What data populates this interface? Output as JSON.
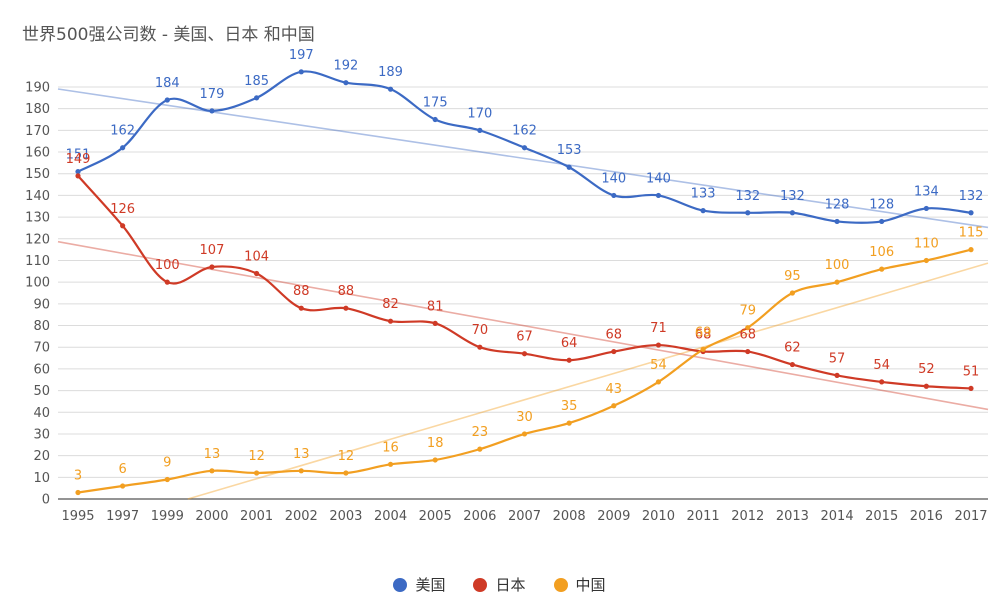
{
  "chart_data": {
    "type": "line",
    "title": "世界500强公司数 - 美国、日本 和中国",
    "xlabel": "",
    "ylabel": "",
    "x": [
      "1995",
      "1997",
      "1999",
      "2000",
      "2001",
      "2002",
      "2003",
      "2004",
      "2005",
      "2006",
      "2007",
      "2008",
      "2009",
      "2010",
      "2011",
      "2012",
      "2013",
      "2014",
      "2015",
      "2016",
      "2017"
    ],
    "ylim": [
      0,
      190
    ],
    "yticks": [
      0,
      10,
      20,
      30,
      40,
      50,
      60,
      70,
      80,
      90,
      100,
      110,
      120,
      130,
      140,
      150,
      160,
      170,
      180,
      190
    ],
    "grid": true,
    "legend_position": "bottom",
    "trendlines": true,
    "series": [
      {
        "name": "美国",
        "color": "#3c6ac4",
        "values": [
          151,
          162,
          184,
          179,
          185,
          197,
          192,
          189,
          175,
          170,
          162,
          153,
          140,
          140,
          133,
          132,
          132,
          128,
          128,
          134,
          132
        ]
      },
      {
        "name": "日本",
        "color": "#cf3a26",
        "values": [
          149,
          126,
          100,
          107,
          104,
          88,
          88,
          82,
          81,
          70,
          67,
          64,
          68,
          71,
          68,
          68,
          62,
          57,
          54,
          52,
          51
        ]
      },
      {
        "name": "中国",
        "color": "#f29f21",
        "values": [
          3,
          6,
          9,
          13,
          12,
          13,
          12,
          16,
          18,
          23,
          30,
          35,
          43,
          54,
          69,
          79,
          95,
          100,
          106,
          110,
          115
        ]
      }
    ]
  }
}
